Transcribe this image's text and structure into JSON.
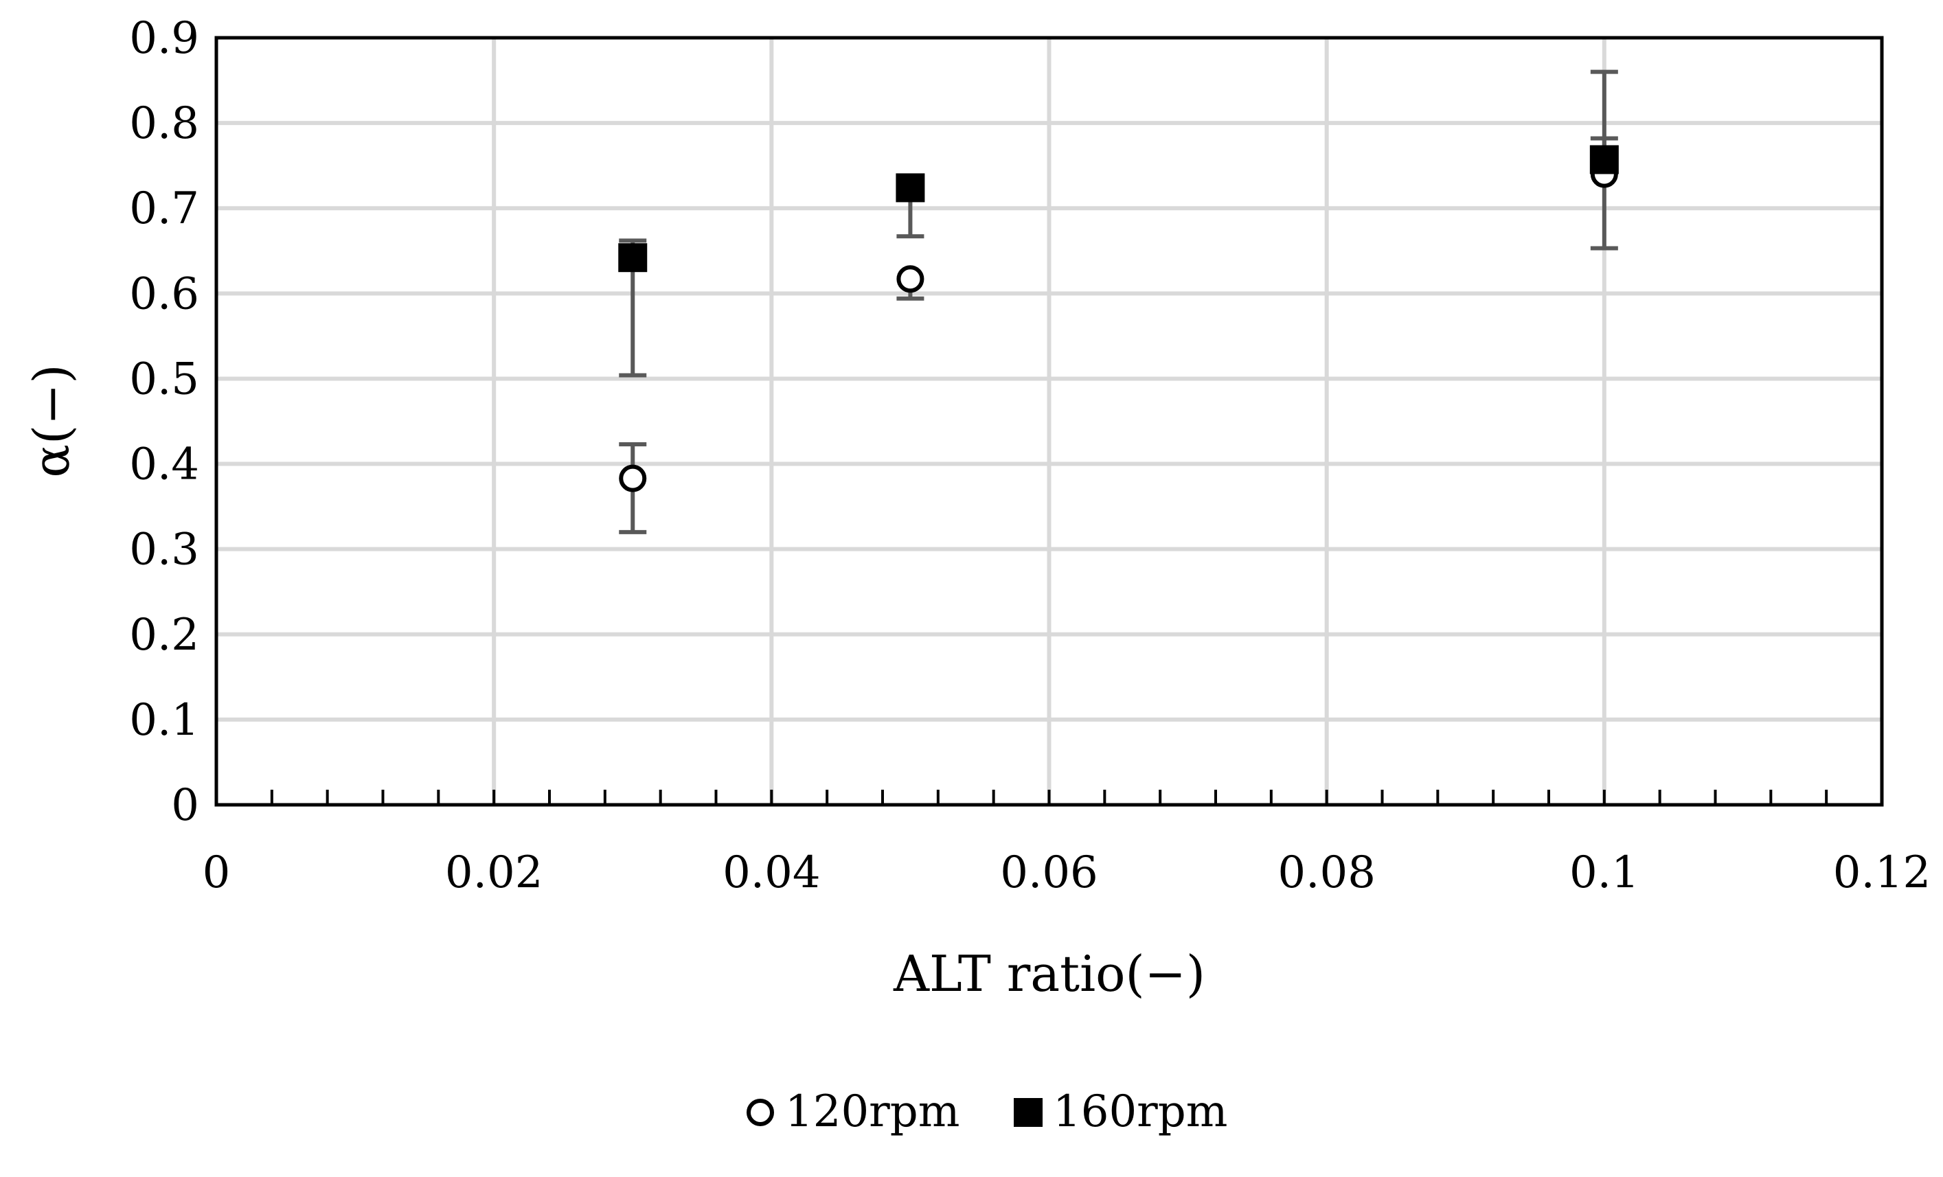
{
  "chart_data": {
    "type": "scatter",
    "title": "",
    "xlabel": "ALT ratio(−)",
    "ylabel": "α(−)",
    "xlim": [
      0,
      0.12
    ],
    "ylim": [
      0,
      0.9
    ],
    "x_ticks": [
      "0",
      "0.02",
      "0.04",
      "0.06",
      "0.08",
      "0.1",
      "0.12"
    ],
    "y_ticks": [
      "0",
      "0.1",
      "0.2",
      "0.3",
      "0.4",
      "0.5",
      "0.6",
      "0.7",
      "0.8",
      "0.9"
    ],
    "grid": true,
    "legend_position": "bottom",
    "series": [
      {
        "name": "120rpm",
        "marker": "open-circle",
        "color": "#000000",
        "points": [
          {
            "x": 0.03,
            "y": 0.383,
            "err_low": 0.32,
            "err_high": 0.423
          },
          {
            "x": 0.05,
            "y": 0.617,
            "err_low": 0.594,
            "err_high": 0.617
          },
          {
            "x": 0.1,
            "y": 0.74,
            "err_low": 0.653,
            "err_high": 0.782
          }
        ]
      },
      {
        "name": "160rpm",
        "marker": "filled-square",
        "color": "#000000",
        "points": [
          {
            "x": 0.03,
            "y": 0.642,
            "err_low": 0.504,
            "err_high": 0.662
          },
          {
            "x": 0.05,
            "y": 0.724,
            "err_low": 0.667,
            "err_high": 0.724
          },
          {
            "x": 0.1,
            "y": 0.757,
            "err_low": 0.757,
            "err_high": 0.86
          }
        ]
      }
    ],
    "error_bar_color": "#595959",
    "grid_color": "#d9d9d9"
  }
}
